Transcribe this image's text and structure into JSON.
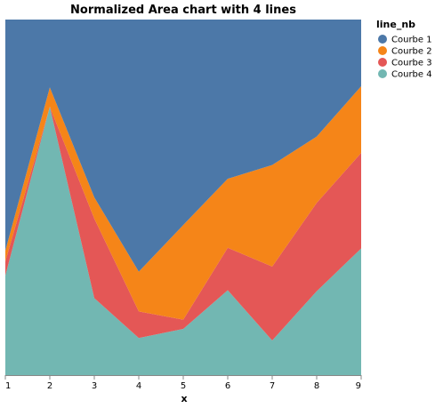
{
  "chart_data": {
    "type": "area",
    "stacked": "normalize",
    "title": "Normalized Area chart with 4 lines",
    "xlabel": "x",
    "ylabel": "",
    "x": [
      1,
      2,
      3,
      4,
      5,
      6,
      7,
      8,
      9
    ],
    "xlim": [
      1,
      9
    ],
    "ylim": [
      0,
      1
    ],
    "grid": false,
    "legend": {
      "title": "line_nb",
      "position": "top-right"
    },
    "series": [
      {
        "name": "Courbe 4",
        "color": "#72b7b2",
        "values": [
          0.28,
          0.83,
          0.29,
          0.14,
          0.2,
          0.32,
          0.15,
          0.38,
          0.57
        ]
      },
      {
        "name": "Courbe 3",
        "color": "#e45756",
        "values": [
          0.04,
          0.0,
          0.3,
          0.1,
          0.04,
          0.16,
          0.32,
          0.4,
          0.43
        ]
      },
      {
        "name": "Courbe 2",
        "color": "#f58518",
        "values": [
          0.03,
          0.06,
          0.08,
          0.15,
          0.41,
          0.26,
          0.44,
          0.3,
          0.3
        ]
      },
      {
        "name": "Courbe 1",
        "color": "#4c78a8",
        "values": [
          0.65,
          0.21,
          0.67,
          0.95,
          0.89,
          0.6,
          0.63,
          0.53,
          0.3
        ]
      }
    ]
  }
}
